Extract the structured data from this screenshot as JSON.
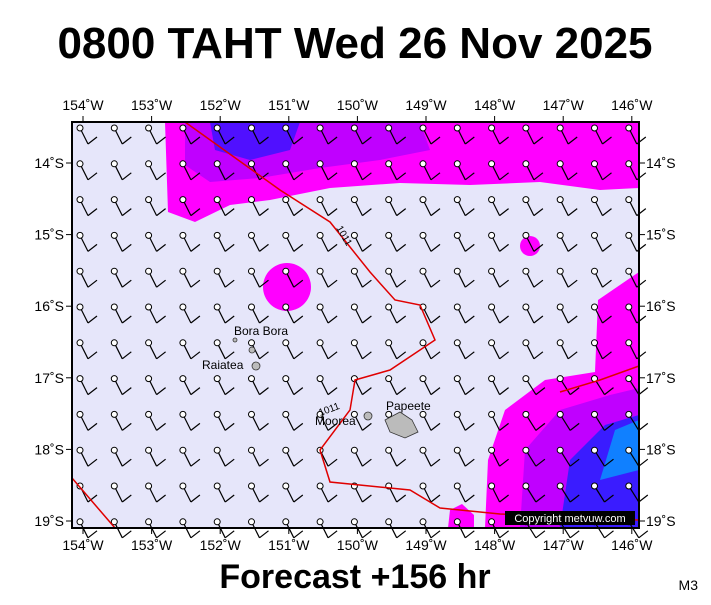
{
  "header": {
    "title": "0800 TAHT Wed 26 Nov 2025"
  },
  "map": {
    "lon_labels": [
      "154˚W",
      "153˚W",
      "152˚W",
      "151˚W",
      "150˚W",
      "149˚W",
      "148˚W",
      "147˚W",
      "146˚W"
    ],
    "lat_labels": [
      "14˚S",
      "15˚S",
      "16˚S",
      "17˚S",
      "18˚S",
      "19˚S"
    ],
    "places": [
      "Bora Bora",
      "Raiatea",
      "Moorea",
      "Papeete"
    ],
    "isobar_labels": [
      "1011",
      "1011"
    ],
    "copyright": "Copyright metvuw.com"
  },
  "footer": {
    "caption": "Forecast +156 hr",
    "code": "M3"
  }
}
